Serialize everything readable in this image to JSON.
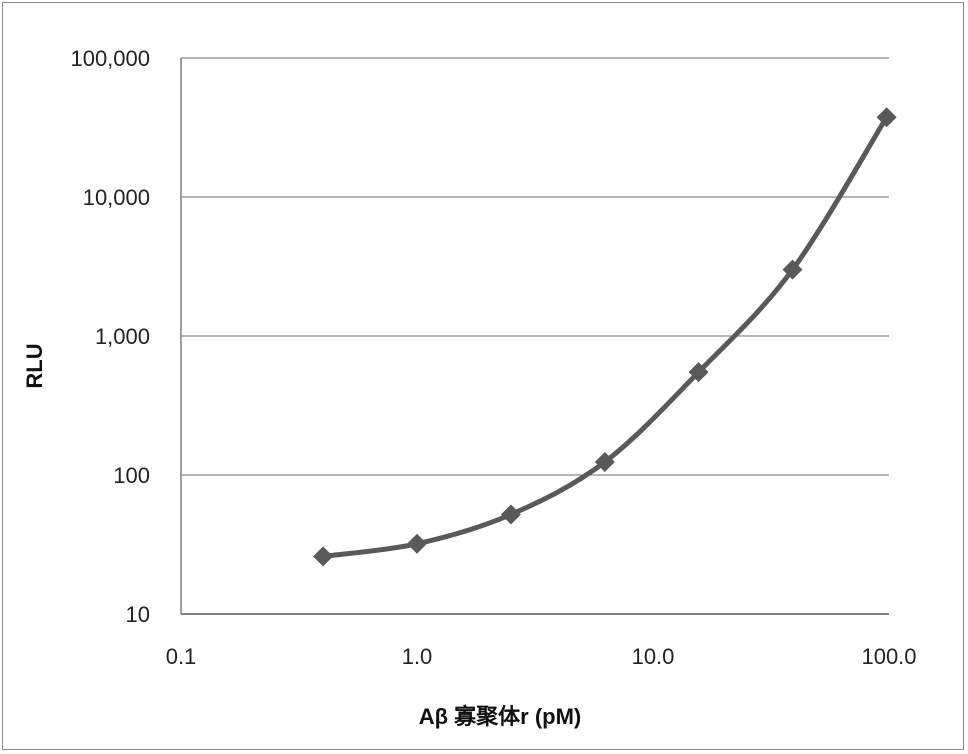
{
  "chart_data": {
    "type": "line",
    "title": "",
    "xlabel": "Aβ 寡聚体r (pM)",
    "ylabel": "RLU",
    "x_scale": "log",
    "y_scale": "log",
    "xlim": [
      0.1,
      100
    ],
    "ylim": [
      10,
      100000
    ],
    "x_ticks": [
      "0.1",
      "1.0",
      "10.0",
      "100.0"
    ],
    "y_ticks": [
      "10",
      "100",
      "1,000",
      "10,000",
      "100,000"
    ],
    "grid": "horizontal major",
    "legend": "none",
    "series": [
      {
        "x": [
          0.4,
          1.0,
          2.5,
          6.25,
          15.6,
          39,
          97.7
        ],
        "y": [
          26,
          32,
          52,
          124,
          550,
          3000,
          37500
        ],
        "color": "#595959",
        "marker": "diamond",
        "smooth": true
      }
    ]
  }
}
